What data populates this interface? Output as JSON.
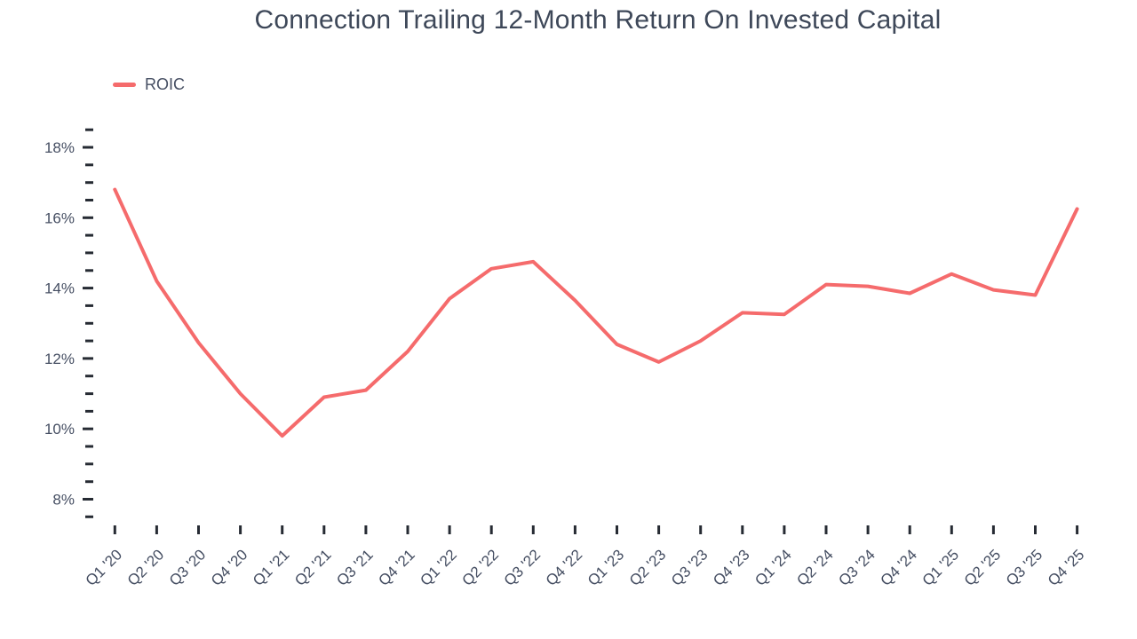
{
  "chart_data": {
    "type": "line",
    "title": "Connection Trailing 12-Month Return On Invested Capital",
    "legend": [
      {
        "label": "ROIC",
        "color": "#F56B6C"
      }
    ],
    "legend_position": "top-left",
    "grid": false,
    "categories": [
      "Q1 '20",
      "Q2 '20",
      "Q3 '20",
      "Q4 '20",
      "Q1 '21",
      "Q2 '21",
      "Q3 '21",
      "Q4 '21",
      "Q1 '22",
      "Q2 '22",
      "Q3 '22",
      "Q4 '22",
      "Q1 '23",
      "Q2 '23",
      "Q3 '23",
      "Q4 '23",
      "Q1 '24",
      "Q2 '24",
      "Q3 '24",
      "Q4 '24",
      "Q1 '25",
      "Q2 '25",
      "Q3 '25",
      "Q4 '25"
    ],
    "series": [
      {
        "name": "ROIC",
        "color": "#F56B6C",
        "values": [
          16.8,
          14.2,
          12.45,
          11.0,
          9.8,
          10.9,
          11.1,
          12.2,
          13.7,
          14.55,
          14.75,
          13.65,
          12.4,
          11.9,
          12.5,
          13.3,
          13.25,
          14.1,
          14.05,
          13.85,
          14.4,
          13.95,
          13.8,
          16.25
        ]
      }
    ],
    "xlabel": "",
    "ylabel": "",
    "ylim": [
      7.5,
      18.5
    ],
    "ytick_minor_step": 0.5,
    "yticks_major": [
      {
        "value": 8,
        "label": "8%"
      },
      {
        "value": 10,
        "label": "10%"
      },
      {
        "value": 12,
        "label": "12%"
      },
      {
        "value": 14,
        "label": "14%"
      },
      {
        "value": 16,
        "label": "16%"
      },
      {
        "value": 18,
        "label": "18%"
      }
    ],
    "colors": {
      "line": "#F56B6C",
      "text": "#454E62",
      "tick": "#262B33",
      "background": "#FFFFFF"
    }
  }
}
